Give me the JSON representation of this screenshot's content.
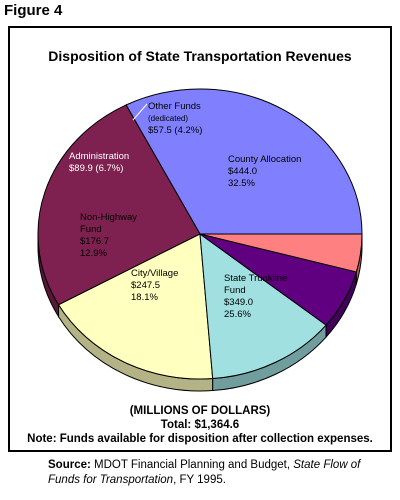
{
  "figure_label": "Figure 4",
  "chart_data": {
    "type": "pie",
    "title": "Disposition of State Transportation Revenues",
    "units": "(MILLIONS OF DOLLARS)",
    "total_label": "Total: $1,364.6",
    "note": "Note: Funds available for disposition after collection expenses.",
    "slices": [
      {
        "name": "County Allocation",
        "value": 444.0,
        "value_label": "$444.0",
        "percent_label": "32.5%",
        "color": "#8080ff"
      },
      {
        "name": "State Trunkline Fund",
        "value": 349.0,
        "value_label": "$349.0",
        "percent_label": "25.6%",
        "color": "#7f2150"
      },
      {
        "name": "City/Village",
        "value": 247.5,
        "value_label": "$247.5",
        "percent_label": "18.1%",
        "color": "#ffffc0"
      },
      {
        "name": "Non-Highway Fund",
        "value": 176.7,
        "value_label": "$176.7",
        "percent_label": "12.9%",
        "color": "#a0e0e0"
      },
      {
        "name": "Administration",
        "value": 89.9,
        "value_label": "$89.9 (6.7%)",
        "percent_label": "",
        "color": "#600080"
      },
      {
        "name": "Other Funds",
        "subtitle": "(dedicated)",
        "value": 57.5,
        "value_label": "$57.5 (4.2%)",
        "percent_label": "",
        "color": "#ff8080"
      }
    ]
  },
  "source": {
    "label": "Source:",
    "text": " MDOT Financial Planning and Budget, ",
    "title": "State Flow of Funds for Transportation",
    "suffix": ", FY 1995."
  }
}
